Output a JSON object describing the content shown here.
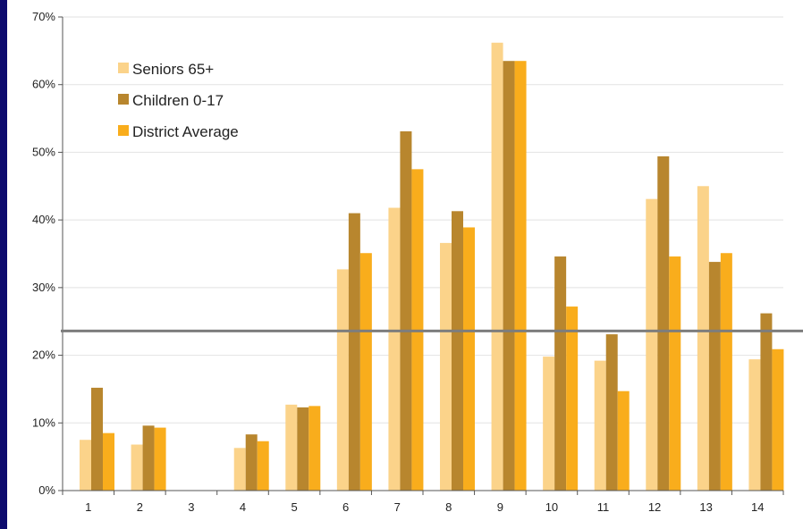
{
  "chart_data": {
    "type": "bar",
    "categories": [
      "1",
      "2",
      "3",
      "4",
      "5",
      "6",
      "7",
      "8",
      "9",
      "10",
      "11",
      "12",
      "13",
      "14"
    ],
    "series": [
      {
        "name": "Seniors 65+",
        "color": "#fbd38a",
        "values": [
          7.5,
          6.8,
          0,
          6.3,
          12.7,
          32.7,
          41.8,
          36.6,
          66.2,
          19.8,
          19.2,
          43.1,
          45.0,
          19.4
        ]
      },
      {
        "name": "Children 0-17",
        "color": "#b8862e",
        "values": [
          15.2,
          9.6,
          0,
          8.3,
          12.3,
          41.0,
          53.1,
          41.3,
          63.5,
          34.6,
          23.1,
          49.4,
          33.8,
          26.2
        ]
      },
      {
        "name": "District Average",
        "color": "#f9ad1c",
        "values": [
          8.5,
          9.3,
          0,
          7.3,
          12.5,
          35.1,
          47.5,
          38.9,
          63.5,
          27.2,
          14.7,
          34.6,
          35.1,
          20.9
        ]
      }
    ],
    "reference_line": {
      "value": 23.6,
      "color": "#7d7d7d"
    },
    "ylim": [
      0,
      70
    ],
    "yticks": [
      "0%",
      "10%",
      "20%",
      "30%",
      "40%",
      "50%",
      "60%",
      "70%"
    ],
    "ytick_values": [
      0,
      10,
      20,
      30,
      40,
      50,
      60,
      70
    ],
    "grid": true,
    "legend_position": "top-left",
    "title": "",
    "xlabel": "",
    "ylabel": ""
  }
}
